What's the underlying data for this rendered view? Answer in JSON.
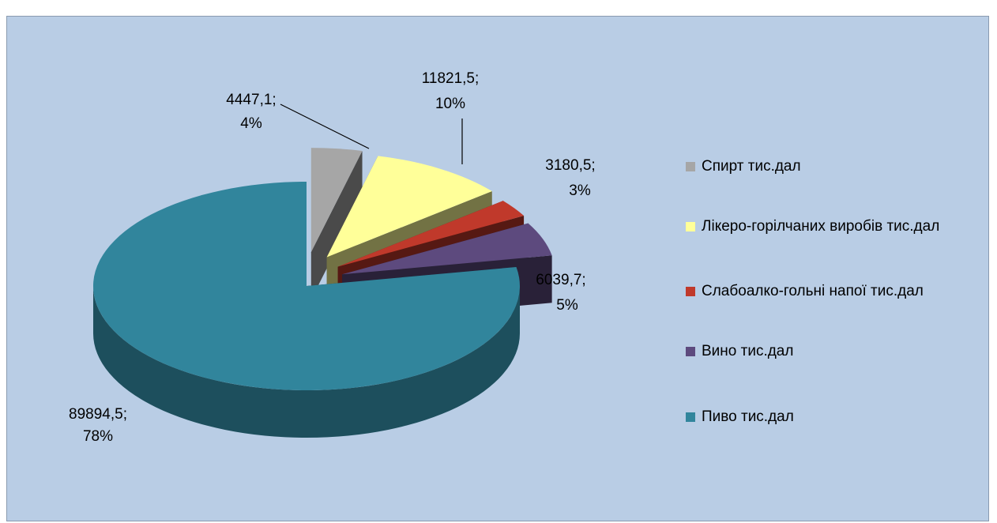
{
  "chart_data": {
    "type": "pie3d",
    "categories": [
      "Спирт тис.дал",
      "Лікеро-горілчаних виробів тис.дал",
      "Слабоалко-гольні напої тис.дал",
      "Вино тис.дал",
      "Пиво тис.дал"
    ],
    "values": [
      4447.1,
      11821.5,
      3180.5,
      6039.7,
      89894.5
    ],
    "value_labels": [
      "4447,1;",
      "11821,5;",
      "3180,5;",
      "6039,7;",
      "89894,5;"
    ],
    "percents": [
      4,
      10,
      3,
      5,
      78
    ],
    "percent_labels": [
      "4%",
      "10%",
      "3%",
      "5%",
      "78%"
    ],
    "colors": [
      "#a6a6a6",
      "#ffff99",
      "#c0392b",
      "#5d4a7e",
      "#31859c"
    ],
    "legend": "right"
  }
}
